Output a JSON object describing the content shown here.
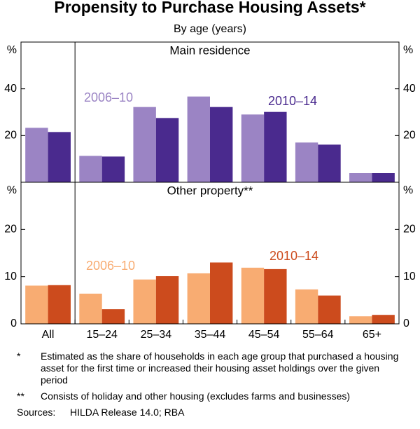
{
  "header": {
    "title": "Propensity to Purchase Housing Assets*",
    "subtitle": "By age (years)"
  },
  "chart_data": [
    {
      "type": "bar",
      "title": "Main residence",
      "unit": "%",
      "ylim": [
        0,
        60
      ],
      "yticks": [
        20,
        40
      ],
      "series": [
        {
          "name": "2006–10",
          "color": "#9b84c4",
          "values": [
            23.3,
            11.3,
            32.2,
            36.7,
            29.0,
            17.0,
            3.9
          ]
        },
        {
          "name": "2010–14",
          "color": "#4a2a8e",
          "values": [
            21.5,
            11.0,
            27.5,
            32.2,
            30.1,
            16.1,
            3.9
          ]
        }
      ]
    },
    {
      "type": "bar",
      "title": "Other property**",
      "unit": "%",
      "ylim": [
        0,
        30
      ],
      "yticks": [
        0,
        10,
        20
      ],
      "categories": [
        "All",
        "15–24",
        "25–34",
        "35–44",
        "45–54",
        "55–64",
        "65+"
      ],
      "series": [
        {
          "name": "2006–10",
          "color": "#f8ac72",
          "values": [
            8.1,
            6.4,
            9.4,
            10.7,
            11.9,
            7.3,
            1.6
          ]
        },
        {
          "name": "2010–14",
          "color": "#cc4b1d",
          "values": [
            8.2,
            3.1,
            10.1,
            13.0,
            11.6,
            6.0,
            1.9
          ]
        }
      ]
    }
  ],
  "notes": [
    {
      "marker": "*",
      "text": "Estimated as the share of households in each age group that purchased a housing asset for the first time or increased their housing asset holdings over the given period"
    },
    {
      "marker": "**",
      "text": "Consists of holiday and other housing (excludes farms and businesses)"
    }
  ],
  "sources": {
    "label": "Sources:",
    "text": "HILDA Release 14.0; RBA"
  }
}
